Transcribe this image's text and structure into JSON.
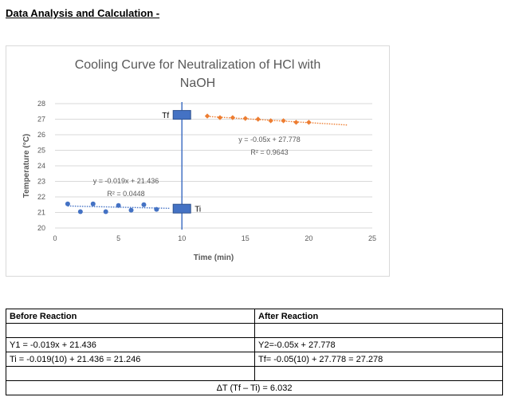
{
  "heading": "Data Analysis and Calculation -",
  "chart_data": {
    "type": "scatter",
    "title_lines": [
      "Cooling Curve for Neutralization of HCl with",
      "NaOH"
    ],
    "xlabel": "Time (min)",
    "ylabel": "Temperature (°C)",
    "xlim": [
      0,
      25
    ],
    "ylim": [
      20,
      28
    ],
    "x_ticks": [
      "0",
      "5",
      "10",
      "15",
      "20",
      "25"
    ],
    "y_ticks": [
      "20",
      "21",
      "22",
      "23",
      "24",
      "25",
      "26",
      "27",
      "28"
    ],
    "grid": "horizontal",
    "series": [
      {
        "color": "#4472c4",
        "points": [
          [
            1,
            21.55
          ],
          [
            2,
            21.05
          ],
          [
            3,
            21.55
          ],
          [
            4,
            21.05
          ],
          [
            5,
            21.45
          ],
          [
            6,
            21.15
          ],
          [
            7,
            21.5
          ],
          [
            8,
            21.2
          ]
        ]
      },
      {
        "color": "#ed7d31",
        "points": [
          [
            12,
            27.2
          ],
          [
            13,
            27.1
          ],
          [
            14,
            27.1
          ],
          [
            15,
            27.05
          ],
          [
            16,
            27.0
          ],
          [
            17,
            26.9
          ],
          [
            18,
            26.9
          ],
          [
            19,
            26.8
          ],
          [
            20,
            26.8
          ]
        ]
      }
    ],
    "trendlines": [
      {
        "color": "#4472c4",
        "x_range": [
          1,
          9
        ],
        "slope": -0.019,
        "intercept": 21.436,
        "equation": "y = -0.019x + 21.436",
        "r2": "R² = 0.0448"
      },
      {
        "color": "#ed7d31",
        "x_range": [
          12,
          23
        ],
        "slope": -0.05,
        "intercept": 27.778,
        "equation": "y = -0.05x + 27.778",
        "r2": "R² = 0.9643"
      }
    ],
    "vertical_line": {
      "x": 10,
      "color": "#4472c4"
    },
    "markers": [
      {
        "x": 10,
        "y": 21.246,
        "label": "Ti"
      },
      {
        "x": 10,
        "y": 27.278,
        "label": "Tf"
      }
    ]
  },
  "table": {
    "before_header": "Before Reaction",
    "after_header": "After Reaction",
    "y1": "Y1 = -0.019x + 21.436",
    "y2": "Y2=-0.05x + 27.778",
    "ti": "Ti = -0.019(10) + 21.436 = 21.246",
    "tf": "Tf= -0.05(10) + 27.778 = 27.278",
    "delta": "ΔT (Tf – Ti) = 6.032"
  }
}
